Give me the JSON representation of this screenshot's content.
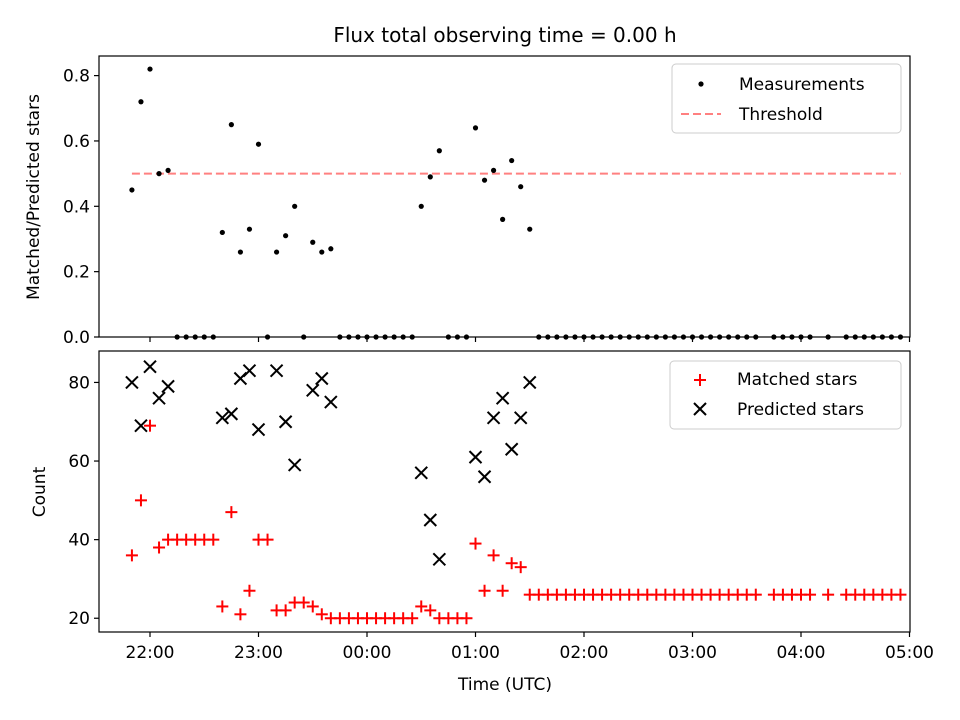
{
  "chart_data": [
    {
      "type": "scatter",
      "title": "Flux total observing time = 0.00 h",
      "xlabel": "",
      "ylabel": "Matched/Predicted stars",
      "ylim": [
        0,
        0.86
      ],
      "yticks": [
        0.0,
        0.2,
        0.4,
        0.6,
        0.8
      ],
      "yticklabels": [
        "0.0",
        "0.2",
        "0.4",
        "0.6",
        "0.8"
      ],
      "legend_position": "top-right",
      "legend": [
        "Measurements",
        "Threshold"
      ],
      "series": [
        {
          "name": "Measurements",
          "color": "#000000",
          "marker": "dot",
          "points": [
            [
              "21:50",
              0.45
            ],
            [
              "21:55",
              0.72
            ],
            [
              "22:00",
              0.82
            ],
            [
              "22:05",
              0.5
            ],
            [
              "22:10",
              0.51
            ],
            [
              "22:15",
              0.0
            ],
            [
              "22:20",
              0.0
            ],
            [
              "22:25",
              0.0
            ],
            [
              "22:30",
              0.0
            ],
            [
              "22:35",
              0.0
            ],
            [
              "22:40",
              0.32
            ],
            [
              "22:45",
              0.65
            ],
            [
              "22:50",
              0.26
            ],
            [
              "22:55",
              0.33
            ],
            [
              "23:00",
              0.59
            ],
            [
              "23:05",
              0.0
            ],
            [
              "23:10",
              0.26
            ],
            [
              "23:15",
              0.31
            ],
            [
              "23:20",
              0.4
            ],
            [
              "23:25",
              0.0
            ],
            [
              "23:30",
              0.29
            ],
            [
              "23:35",
              0.26
            ],
            [
              "23:40",
              0.27
            ],
            [
              "23:45",
              0.0
            ],
            [
              "23:50",
              0.0
            ],
            [
              "23:55",
              0.0
            ],
            [
              "00:00",
              0.0
            ],
            [
              "00:05",
              0.0
            ],
            [
              "00:10",
              0.0
            ],
            [
              "00:15",
              0.0
            ],
            [
              "00:20",
              0.0
            ],
            [
              "00:25",
              0.0
            ],
            [
              "00:30",
              0.4
            ],
            [
              "00:35",
              0.49
            ],
            [
              "00:40",
              0.57
            ],
            [
              "00:45",
              0.0
            ],
            [
              "00:50",
              0.0
            ],
            [
              "00:55",
              0.0
            ],
            [
              "01:00",
              0.64
            ],
            [
              "01:05",
              0.48
            ],
            [
              "01:10",
              0.51
            ],
            [
              "01:15",
              0.36
            ],
            [
              "01:20",
              0.54
            ],
            [
              "01:25",
              0.46
            ],
            [
              "01:30",
              0.33
            ],
            [
              "01:35",
              0.0
            ],
            [
              "01:40",
              0.0
            ],
            [
              "01:45",
              0.0
            ],
            [
              "01:50",
              0.0
            ],
            [
              "01:55",
              0.0
            ],
            [
              "02:00",
              0.0
            ],
            [
              "02:05",
              0.0
            ],
            [
              "02:10",
              0.0
            ],
            [
              "02:15",
              0.0
            ],
            [
              "02:20",
              0.0
            ],
            [
              "02:25",
              0.0
            ],
            [
              "02:30",
              0.0
            ],
            [
              "02:35",
              0.0
            ],
            [
              "02:40",
              0.0
            ],
            [
              "02:45",
              0.0
            ],
            [
              "02:50",
              0.0
            ],
            [
              "02:55",
              0.0
            ],
            [
              "03:00",
              0.0
            ],
            [
              "03:05",
              0.0
            ],
            [
              "03:10",
              0.0
            ],
            [
              "03:15",
              0.0
            ],
            [
              "03:20",
              0.0
            ],
            [
              "03:25",
              0.0
            ],
            [
              "03:30",
              0.0
            ],
            [
              "03:35",
              0.0
            ],
            [
              "03:45",
              0.0
            ],
            [
              "03:50",
              0.0
            ],
            [
              "03:55",
              0.0
            ],
            [
              "04:00",
              0.0
            ],
            [
              "04:05",
              0.0
            ],
            [
              "04:15",
              0.0
            ],
            [
              "04:25",
              0.0
            ],
            [
              "04:30",
              0.0
            ],
            [
              "04:35",
              0.0
            ],
            [
              "04:40",
              0.0
            ],
            [
              "04:45",
              0.0
            ],
            [
              "04:50",
              0.0
            ],
            [
              "04:55",
              0.0
            ]
          ]
        },
        {
          "name": "Threshold",
          "color": "#ff8080",
          "style": "dashed",
          "points": [
            [
              "21:50",
              0.5
            ],
            [
              "04:55",
              0.5
            ]
          ]
        }
      ]
    },
    {
      "type": "scatter",
      "title": "",
      "xlabel": "Time (UTC)",
      "ylabel": "Count",
      "ylim": [
        16.5,
        88
      ],
      "yticks": [
        20,
        40,
        60,
        80
      ],
      "yticklabels": [
        "20",
        "40",
        "60",
        "80"
      ],
      "xticks": [
        "22:00",
        "23:00",
        "00:00",
        "01:00",
        "02:00",
        "03:00",
        "04:00",
        "05:00"
      ],
      "legend_position": "top-right",
      "legend": [
        "Matched stars",
        "Predicted stars"
      ],
      "series": [
        {
          "name": "Matched stars",
          "color": "#ff0000",
          "marker": "plus",
          "points": [
            [
              "21:50",
              36
            ],
            [
              "21:55",
              50
            ],
            [
              "22:00",
              69
            ],
            [
              "22:05",
              38
            ],
            [
              "22:10",
              40
            ],
            [
              "22:15",
              40
            ],
            [
              "22:20",
              40
            ],
            [
              "22:25",
              40
            ],
            [
              "22:30",
              40
            ],
            [
              "22:35",
              40
            ],
            [
              "22:40",
              23
            ],
            [
              "22:45",
              47
            ],
            [
              "22:50",
              21
            ],
            [
              "22:55",
              27
            ],
            [
              "23:00",
              40
            ],
            [
              "23:05",
              40
            ],
            [
              "23:10",
              22
            ],
            [
              "23:15",
              22
            ],
            [
              "23:20",
              24
            ],
            [
              "23:25",
              24
            ],
            [
              "23:30",
              23
            ],
            [
              "23:35",
              21
            ],
            [
              "23:40",
              20
            ],
            [
              "23:45",
              20
            ],
            [
              "23:50",
              20
            ],
            [
              "23:55",
              20
            ],
            [
              "00:00",
              20
            ],
            [
              "00:05",
              20
            ],
            [
              "00:10",
              20
            ],
            [
              "00:15",
              20
            ],
            [
              "00:20",
              20
            ],
            [
              "00:25",
              20
            ],
            [
              "00:30",
              23
            ],
            [
              "00:35",
              22
            ],
            [
              "00:40",
              20
            ],
            [
              "00:45",
              20
            ],
            [
              "00:50",
              20
            ],
            [
              "00:55",
              20
            ],
            [
              "01:00",
              39
            ],
            [
              "01:05",
              27
            ],
            [
              "01:10",
              36
            ],
            [
              "01:15",
              27
            ],
            [
              "01:20",
              34
            ],
            [
              "01:25",
              33
            ],
            [
              "01:30",
              26
            ],
            [
              "01:35",
              26
            ],
            [
              "01:40",
              26
            ],
            [
              "01:45",
              26
            ],
            [
              "01:50",
              26
            ],
            [
              "01:55",
              26
            ],
            [
              "02:00",
              26
            ],
            [
              "02:05",
              26
            ],
            [
              "02:10",
              26
            ],
            [
              "02:15",
              26
            ],
            [
              "02:20",
              26
            ],
            [
              "02:25",
              26
            ],
            [
              "02:30",
              26
            ],
            [
              "02:35",
              26
            ],
            [
              "02:40",
              26
            ],
            [
              "02:45",
              26
            ],
            [
              "02:50",
              26
            ],
            [
              "02:55",
              26
            ],
            [
              "03:00",
              26
            ],
            [
              "03:05",
              26
            ],
            [
              "03:10",
              26
            ],
            [
              "03:15",
              26
            ],
            [
              "03:20",
              26
            ],
            [
              "03:25",
              26
            ],
            [
              "03:30",
              26
            ],
            [
              "03:35",
              26
            ],
            [
              "03:45",
              26
            ],
            [
              "03:50",
              26
            ],
            [
              "03:55",
              26
            ],
            [
              "04:00",
              26
            ],
            [
              "04:05",
              26
            ],
            [
              "04:15",
              26
            ],
            [
              "04:25",
              26
            ],
            [
              "04:30",
              26
            ],
            [
              "04:35",
              26
            ],
            [
              "04:40",
              26
            ],
            [
              "04:45",
              26
            ],
            [
              "04:50",
              26
            ],
            [
              "04:55",
              26
            ]
          ]
        },
        {
          "name": "Predicted stars",
          "color": "#000000",
          "marker": "x",
          "points": [
            [
              "21:50",
              80
            ],
            [
              "21:55",
              69
            ],
            [
              "22:00",
              84
            ],
            [
              "22:05",
              76
            ],
            [
              "22:10",
              79
            ],
            [
              "22:40",
              71
            ],
            [
              "22:45",
              72
            ],
            [
              "22:50",
              81
            ],
            [
              "22:55",
              83
            ],
            [
              "23:00",
              68
            ],
            [
              "23:10",
              83
            ],
            [
              "23:15",
              70
            ],
            [
              "23:20",
              59
            ],
            [
              "23:30",
              78
            ],
            [
              "23:35",
              81
            ],
            [
              "23:40",
              75
            ],
            [
              "00:30",
              57
            ],
            [
              "00:35",
              45
            ],
            [
              "00:40",
              35
            ],
            [
              "01:00",
              61
            ],
            [
              "01:05",
              56
            ],
            [
              "01:10",
              71
            ],
            [
              "01:15",
              76
            ],
            [
              "01:20",
              63
            ],
            [
              "01:25",
              71
            ],
            [
              "01:30",
              80
            ]
          ]
        }
      ]
    }
  ]
}
